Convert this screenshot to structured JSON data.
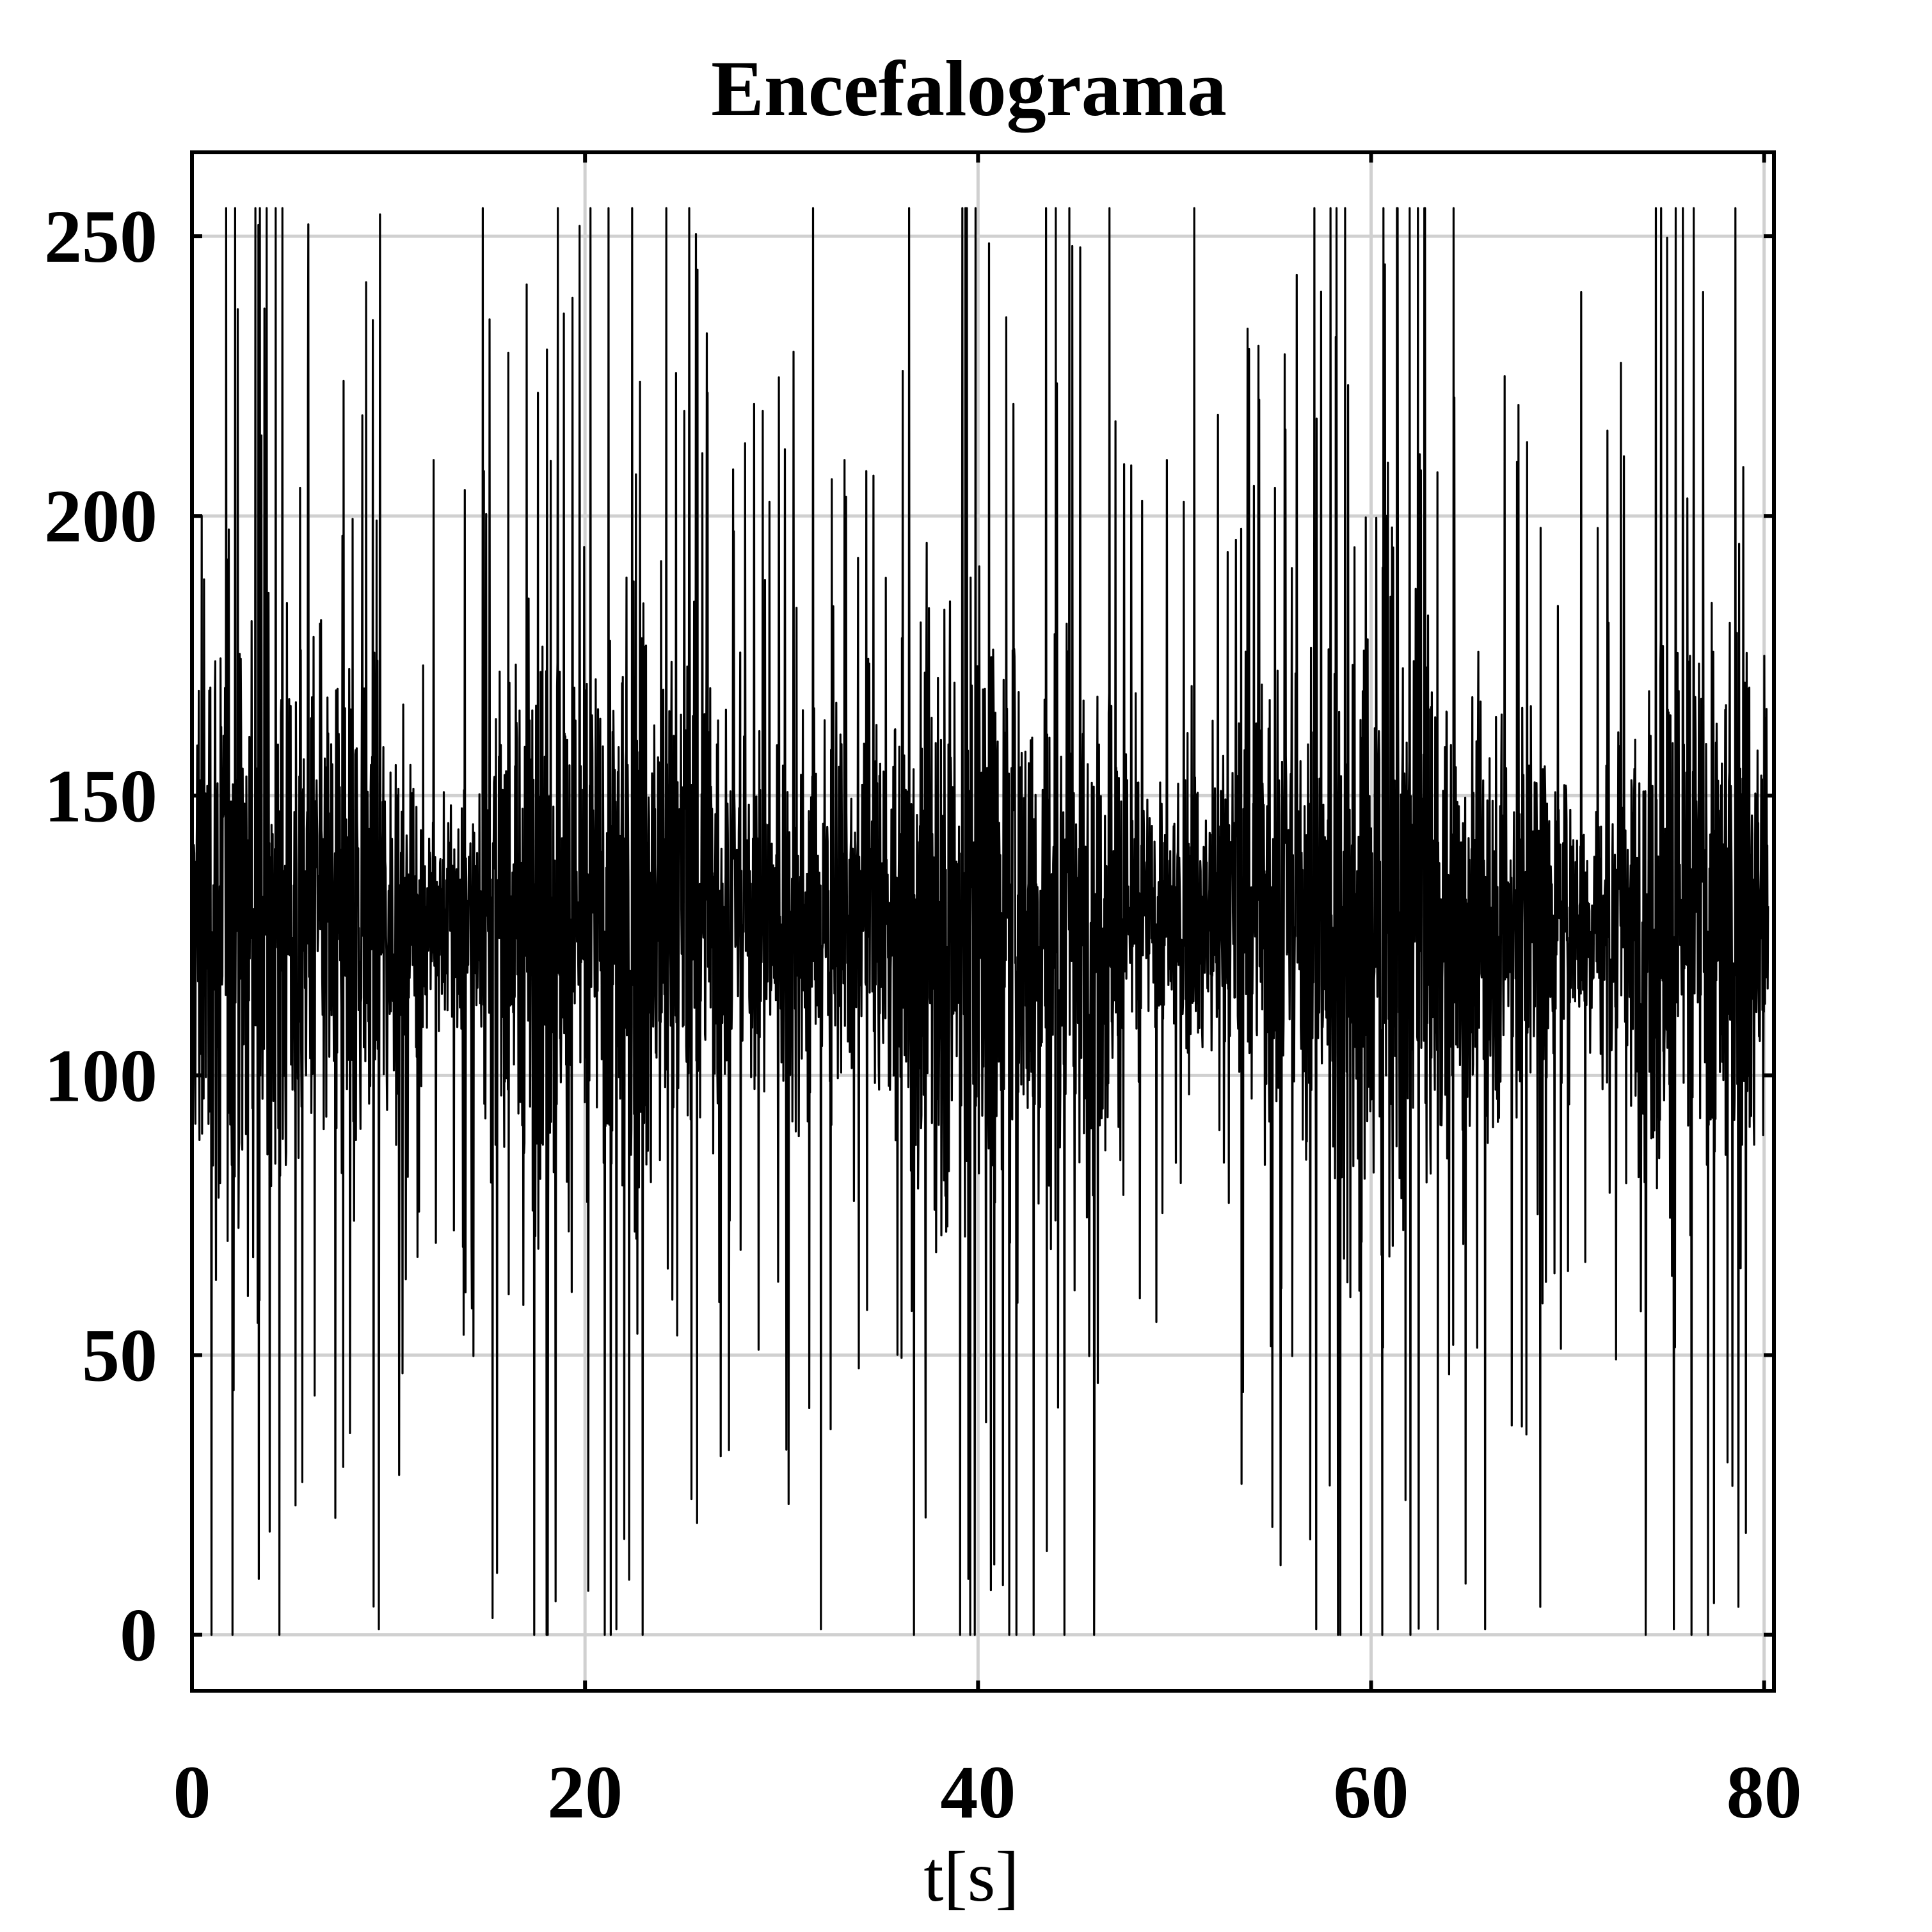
{
  "chart_data": {
    "type": "line",
    "title": "Encefalograma",
    "xlabel": "t[s]",
    "ylabel": "",
    "xlim": [
      0,
      80.5
    ],
    "ylim": [
      -10,
      265
    ],
    "xticks": [
      0,
      20,
      40,
      60,
      80
    ],
    "yticks": [
      0,
      50,
      100,
      150,
      200,
      250
    ],
    "grid": true,
    "legend": "none",
    "series": [
      {
        "color": "#000000",
        "mean": 128,
        "min": 0,
        "max": 255,
        "x": [
          0,
          0.5,
          1,
          2.2,
          3.4,
          5.5,
          7.7,
          9.2,
          9.5,
          12.3,
          14.8,
          15.3,
          17.6,
          18.5,
          21.2,
          21.6,
          25.3,
          25.7,
          28.6,
          31.6,
          32,
          33.2,
          36.5,
          39.2,
          39.5,
          41.8,
          43.5,
          45.2,
          46.1,
          49.6,
          51,
          53.4,
          55.1,
          57.2,
          58.2,
          60.8,
          62.7,
          63.4,
          64.2,
          65.8,
          66.8,
          68.6,
          70.7,
          74.5,
          75.4,
          76.9,
          78.7,
          80
        ],
        "y": [
          130,
          200,
          0,
          255,
          10,
          205,
          30,
          235,
          1,
          210,
          255,
          3,
          222,
          6,
          255,
          1,
          255,
          20,
          220,
          255,
          1,
          210,
          255,
          255,
          10,
          220,
          15,
          248,
          45,
          210,
          255,
          27,
          205,
          1,
          232,
          200,
          255,
          1,
          255,
          1,
          225,
          5,
          240,
          255,
          1,
          240,
          5,
          175
        ]
      }
    ]
  }
}
